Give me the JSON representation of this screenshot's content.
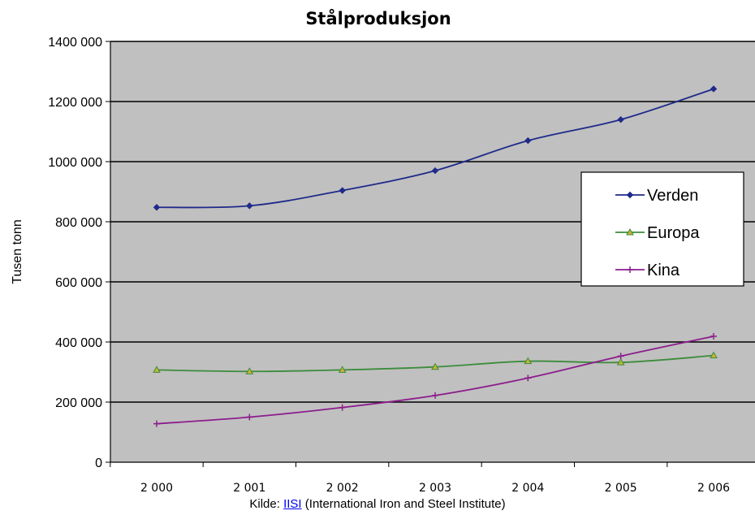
{
  "chart_data": {
    "type": "line",
    "title": "Stålproduksjon",
    "xlabel": "",
    "ylabel": "Tusen tonn",
    "categories": [
      "2 000",
      "2 001",
      "2 002",
      "2 003",
      "2 004",
      "2 005",
      "2 006"
    ],
    "ylim": [
      0,
      1400000
    ],
    "yticks": [
      0,
      200000,
      400000,
      600000,
      800000,
      1000000,
      1200000,
      1400000
    ],
    "ytick_labels": [
      "0",
      "200 000",
      "400 000",
      "600 000",
      "800 000",
      "1000 000",
      "1200 000",
      "1400 000"
    ],
    "grid": true,
    "legend_position": "right",
    "plot_background": "#c0c0c0",
    "series": [
      {
        "name": "Verden",
        "color": "#1f2a8a",
        "marker": "diamond",
        "values": [
          848000,
          853000,
          904000,
          970000,
          1070000,
          1140000,
          1242000
        ]
      },
      {
        "name": "Europa",
        "color": "#3c8c3c",
        "marker": "triangle",
        "values": [
          307000,
          302000,
          307000,
          317000,
          336000,
          332000,
          355000
        ]
      },
      {
        "name": "Kina",
        "color": "#8c1e8c",
        "marker": "plus",
        "values": [
          128000,
          150000,
          182000,
          222000,
          280000,
          353000,
          419000
        ]
      }
    ]
  },
  "source": {
    "prefix": "Kilde: ",
    "link_text": "IISI",
    "suffix": " (International Iron and Steel Institute)"
  }
}
